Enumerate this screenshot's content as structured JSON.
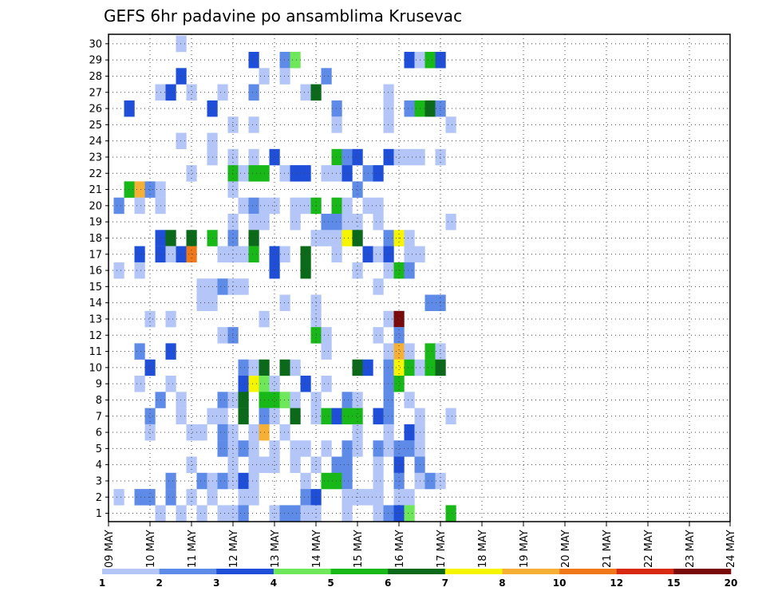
{
  "chart_data": {
    "type": "heatmap",
    "title": "GEFS 6hr padavine po ansamblima Krusevac",
    "x_ticks": [
      "09 MAY",
      "10 MAY",
      "11 MAY",
      "12 MAY",
      "13 MAY",
      "14 MAY",
      "15 MAY",
      "16 MAY",
      "17 MAY",
      "18 MAY",
      "19 MAY",
      "20 MAY",
      "21 MAY",
      "22 MAY",
      "23 MAY",
      "24 MAY"
    ],
    "y_ticks": [
      "1",
      "2",
      "3",
      "4",
      "5",
      "6",
      "7",
      "8",
      "9",
      "10",
      "11",
      "12",
      "13",
      "14",
      "15",
      "16",
      "17",
      "18",
      "19",
      "20",
      "21",
      "22",
      "23",
      "24",
      "25",
      "26",
      "27",
      "28",
      "29",
      "30"
    ],
    "grid": true,
    "legend": {
      "position": "bottom",
      "labels": [
        "1",
        "2",
        "3",
        "4",
        "5",
        "6",
        "7",
        "8",
        "10",
        "12",
        "15",
        "20"
      ],
      "colors": [
        "#b3c6f7",
        "#5f8be8",
        "#1f4fd8",
        "#6ee85a",
        "#18b818",
        "#0b6a1a",
        "#f5f500",
        "#f5b035",
        "#f07818",
        "#d82a10",
        "#7a0a0a"
      ]
    },
    "time_unit": "6-hour steps from 09 MAY 00Z",
    "cells": [
      [
        7,
        30,
        1
      ],
      [
        14,
        29,
        3
      ],
      [
        17,
        29,
        2
      ],
      [
        18,
        29,
        4
      ],
      [
        29,
        29,
        3
      ],
      [
        30,
        29,
        1
      ],
      [
        31,
        29,
        5
      ],
      [
        32,
        29,
        3
      ],
      [
        7,
        28,
        3
      ],
      [
        15,
        28,
        1
      ],
      [
        17,
        28,
        1
      ],
      [
        21,
        28,
        2
      ],
      [
        5,
        27,
        1
      ],
      [
        6,
        27,
        3
      ],
      [
        8,
        27,
        1
      ],
      [
        11,
        27,
        1
      ],
      [
        14,
        27,
        2
      ],
      [
        19,
        27,
        1
      ],
      [
        20,
        27,
        6
      ],
      [
        27,
        27,
        1
      ],
      [
        2,
        26,
        3
      ],
      [
        10,
        26,
        3
      ],
      [
        22,
        26,
        2
      ],
      [
        27,
        26,
        1
      ],
      [
        29,
        26,
        2
      ],
      [
        30,
        26,
        5
      ],
      [
        31,
        26,
        6
      ],
      [
        32,
        26,
        2
      ],
      [
        12,
        25,
        1
      ],
      [
        14,
        25,
        1
      ],
      [
        22,
        25,
        1
      ],
      [
        27,
        25,
        1
      ],
      [
        33,
        25,
        1
      ],
      [
        7,
        24,
        1
      ],
      [
        10,
        24,
        1
      ],
      [
        10,
        23,
        1
      ],
      [
        12,
        23,
        1
      ],
      [
        14,
        23,
        1
      ],
      [
        16,
        23,
        3
      ],
      [
        22,
        23,
        5
      ],
      [
        23,
        23,
        2
      ],
      [
        24,
        23,
        3
      ],
      [
        27,
        23,
        3
      ],
      [
        28,
        23,
        1
      ],
      [
        29,
        23,
        1
      ],
      [
        30,
        23,
        1
      ],
      [
        32,
        23,
        1
      ],
      [
        8,
        22,
        1
      ],
      [
        12,
        22,
        5
      ],
      [
        13,
        22,
        1
      ],
      [
        14,
        22,
        5
      ],
      [
        15,
        22,
        5
      ],
      [
        17,
        22,
        1
      ],
      [
        18,
        22,
        3
      ],
      [
        19,
        22,
        3
      ],
      [
        21,
        22,
        1
      ],
      [
        22,
        22,
        1
      ],
      [
        23,
        22,
        3
      ],
      [
        25,
        22,
        2
      ],
      [
        26,
        22,
        3
      ],
      [
        2,
        21,
        5
      ],
      [
        3,
        21,
        8
      ],
      [
        4,
        21,
        2
      ],
      [
        5,
        21,
        1
      ],
      [
        12,
        21,
        1
      ],
      [
        24,
        21,
        2
      ],
      [
        1,
        20,
        2
      ],
      [
        3,
        20,
        1
      ],
      [
        5,
        20,
        1
      ],
      [
        13,
        20,
        1
      ],
      [
        14,
        20,
        2
      ],
      [
        15,
        20,
        1
      ],
      [
        16,
        20,
        1
      ],
      [
        18,
        20,
        1
      ],
      [
        19,
        20,
        1
      ],
      [
        20,
        20,
        5
      ],
      [
        22,
        20,
        5
      ],
      [
        23,
        20,
        1
      ],
      [
        25,
        20,
        1
      ],
      [
        26,
        20,
        1
      ],
      [
        12,
        19,
        1
      ],
      [
        14,
        19,
        1
      ],
      [
        15,
        19,
        1
      ],
      [
        18,
        19,
        1
      ],
      [
        21,
        19,
        2
      ],
      [
        22,
        19,
        2
      ],
      [
        23,
        19,
        1
      ],
      [
        24,
        19,
        1
      ],
      [
        26,
        19,
        1
      ],
      [
        33,
        19,
        1
      ],
      [
        5,
        18,
        3
      ],
      [
        6,
        18,
        6
      ],
      [
        8,
        18,
        6
      ],
      [
        10,
        18,
        5
      ],
      [
        12,
        18,
        2
      ],
      [
        14,
        18,
        6
      ],
      [
        20,
        18,
        1
      ],
      [
        21,
        18,
        1
      ],
      [
        22,
        18,
        1
      ],
      [
        23,
        18,
        7
      ],
      [
        24,
        18,
        6
      ],
      [
        27,
        18,
        2
      ],
      [
        28,
        18,
        7
      ],
      [
        29,
        18,
        1
      ],
      [
        3,
        17,
        3
      ],
      [
        5,
        17,
        3
      ],
      [
        6,
        17,
        1
      ],
      [
        7,
        17,
        3
      ],
      [
        8,
        17,
        9
      ],
      [
        11,
        17,
        1
      ],
      [
        12,
        17,
        1
      ],
      [
        13,
        17,
        1
      ],
      [
        14,
        17,
        5
      ],
      [
        16,
        17,
        3
      ],
      [
        17,
        17,
        1
      ],
      [
        19,
        17,
        6
      ],
      [
        22,
        17,
        1
      ],
      [
        25,
        17,
        3
      ],
      [
        26,
        17,
        1
      ],
      [
        27,
        17,
        3
      ],
      [
        29,
        17,
        1
      ],
      [
        30,
        17,
        1
      ],
      [
        1,
        16,
        1
      ],
      [
        3,
        16,
        1
      ],
      [
        16,
        16,
        3
      ],
      [
        19,
        16,
        6
      ],
      [
        24,
        16,
        1
      ],
      [
        27,
        16,
        1
      ],
      [
        28,
        16,
        5
      ],
      [
        29,
        16,
        2
      ],
      [
        9,
        15,
        1
      ],
      [
        10,
        15,
        1
      ],
      [
        11,
        15,
        2
      ],
      [
        12,
        15,
        1
      ],
      [
        13,
        15,
        1
      ],
      [
        26,
        15,
        1
      ],
      [
        9,
        14,
        1
      ],
      [
        10,
        14,
        1
      ],
      [
        17,
        14,
        1
      ],
      [
        20,
        14,
        1
      ],
      [
        31,
        14,
        2
      ],
      [
        32,
        14,
        2
      ],
      [
        4,
        13,
        1
      ],
      [
        6,
        13,
        1
      ],
      [
        15,
        13,
        1
      ],
      [
        20,
        13,
        1
      ],
      [
        27,
        13,
        1
      ],
      [
        28,
        13,
        11
      ],
      [
        11,
        12,
        1
      ],
      [
        12,
        12,
        2
      ],
      [
        20,
        12,
        5
      ],
      [
        21,
        12,
        1
      ],
      [
        26,
        12,
        1
      ],
      [
        28,
        12,
        2
      ],
      [
        3,
        11,
        2
      ],
      [
        6,
        11,
        3
      ],
      [
        21,
        11,
        1
      ],
      [
        27,
        11,
        1
      ],
      [
        28,
        11,
        8
      ],
      [
        29,
        11,
        1
      ],
      [
        31,
        11,
        5
      ],
      [
        32,
        11,
        1
      ],
      [
        4,
        10,
        3
      ],
      [
        13,
        10,
        2
      ],
      [
        14,
        10,
        1
      ],
      [
        15,
        10,
        6
      ],
      [
        17,
        10,
        6
      ],
      [
        18,
        10,
        1
      ],
      [
        24,
        10,
        6
      ],
      [
        25,
        10,
        3
      ],
      [
        27,
        10,
        2
      ],
      [
        28,
        10,
        7
      ],
      [
        29,
        10,
        5
      ],
      [
        30,
        10,
        1
      ],
      [
        31,
        10,
        5
      ],
      [
        32,
        10,
        6
      ],
      [
        3,
        9,
        1
      ],
      [
        6,
        9,
        1
      ],
      [
        13,
        9,
        3
      ],
      [
        14,
        9,
        7
      ],
      [
        15,
        9,
        4
      ],
      [
        16,
        9,
        1
      ],
      [
        19,
        9,
        3
      ],
      [
        21,
        9,
        1
      ],
      [
        27,
        9,
        2
      ],
      [
        28,
        9,
        5
      ],
      [
        5,
        8,
        2
      ],
      [
        7,
        8,
        1
      ],
      [
        11,
        8,
        2
      ],
      [
        12,
        8,
        1
      ],
      [
        13,
        8,
        6
      ],
      [
        15,
        8,
        5
      ],
      [
        16,
        8,
        5
      ],
      [
        17,
        8,
        4
      ],
      [
        18,
        8,
        1
      ],
      [
        20,
        8,
        1
      ],
      [
        23,
        8,
        2
      ],
      [
        24,
        8,
        1
      ],
      [
        27,
        8,
        2
      ],
      [
        29,
        8,
        1
      ],
      [
        4,
        7,
        2
      ],
      [
        7,
        7,
        1
      ],
      [
        10,
        7,
        1
      ],
      [
        11,
        7,
        1
      ],
      [
        13,
        7,
        6
      ],
      [
        15,
        7,
        2
      ],
      [
        16,
        7,
        1
      ],
      [
        18,
        7,
        6
      ],
      [
        20,
        7,
        1
      ],
      [
        21,
        7,
        5
      ],
      [
        22,
        7,
        3
      ],
      [
        23,
        7,
        5
      ],
      [
        24,
        7,
        5
      ],
      [
        26,
        7,
        3
      ],
      [
        27,
        7,
        2
      ],
      [
        30,
        7,
        1
      ],
      [
        33,
        7,
        1
      ],
      [
        4,
        6,
        1
      ],
      [
        8,
        6,
        1
      ],
      [
        9,
        6,
        1
      ],
      [
        11,
        6,
        2
      ],
      [
        12,
        6,
        1
      ],
      [
        14,
        6,
        1
      ],
      [
        15,
        6,
        8
      ],
      [
        17,
        6,
        1
      ],
      [
        24,
        6,
        1
      ],
      [
        27,
        6,
        1
      ],
      [
        29,
        6,
        3
      ],
      [
        30,
        6,
        1
      ],
      [
        11,
        5,
        2
      ],
      [
        12,
        5,
        1
      ],
      [
        13,
        5,
        2
      ],
      [
        14,
        5,
        1
      ],
      [
        16,
        5,
        1
      ],
      [
        18,
        5,
        1
      ],
      [
        19,
        5,
        1
      ],
      [
        21,
        5,
        1
      ],
      [
        23,
        5,
        2
      ],
      [
        24,
        5,
        1
      ],
      [
        26,
        5,
        2
      ],
      [
        27,
        5,
        1
      ],
      [
        28,
        5,
        2
      ],
      [
        29,
        5,
        2
      ],
      [
        30,
        5,
        1
      ],
      [
        8,
        4,
        1
      ],
      [
        12,
        4,
        1
      ],
      [
        14,
        4,
        1
      ],
      [
        15,
        4,
        1
      ],
      [
        16,
        4,
        1
      ],
      [
        18,
        4,
        1
      ],
      [
        20,
        4,
        1
      ],
      [
        22,
        4,
        2
      ],
      [
        23,
        4,
        2
      ],
      [
        26,
        4,
        1
      ],
      [
        28,
        4,
        3
      ],
      [
        30,
        4,
        2
      ],
      [
        6,
        3,
        2
      ],
      [
        9,
        3,
        2
      ],
      [
        10,
        3,
        1
      ],
      [
        11,
        3,
        2
      ],
      [
        12,
        3,
        1
      ],
      [
        13,
        3,
        3
      ],
      [
        14,
        3,
        1
      ],
      [
        19,
        3,
        1
      ],
      [
        21,
        3,
        5
      ],
      [
        22,
        3,
        5
      ],
      [
        23,
        3,
        2
      ],
      [
        26,
        3,
        1
      ],
      [
        28,
        3,
        2
      ],
      [
        30,
        3,
        1
      ],
      [
        31,
        3,
        2
      ],
      [
        32,
        3,
        1
      ],
      [
        1,
        2,
        1
      ],
      [
        3,
        2,
        2
      ],
      [
        4,
        2,
        2
      ],
      [
        6,
        2,
        2
      ],
      [
        8,
        2,
        1
      ],
      [
        10,
        2,
        1
      ],
      [
        13,
        2,
        1
      ],
      [
        14,
        2,
        1
      ],
      [
        19,
        2,
        2
      ],
      [
        20,
        2,
        3
      ],
      [
        23,
        2,
        1
      ],
      [
        24,
        2,
        1
      ],
      [
        25,
        2,
        1
      ],
      [
        26,
        2,
        1
      ],
      [
        28,
        2,
        1
      ],
      [
        29,
        2,
        1
      ],
      [
        5,
        1,
        1
      ],
      [
        7,
        1,
        1
      ],
      [
        9,
        1,
        1
      ],
      [
        11,
        1,
        1
      ],
      [
        12,
        1,
        1
      ],
      [
        13,
        1,
        2
      ],
      [
        16,
        1,
        1
      ],
      [
        17,
        1,
        2
      ],
      [
        18,
        1,
        2
      ],
      [
        19,
        1,
        1
      ],
      [
        20,
        1,
        1
      ],
      [
        23,
        1,
        1
      ],
      [
        26,
        1,
        1
      ],
      [
        27,
        1,
        2
      ],
      [
        28,
        1,
        3
      ],
      [
        29,
        1,
        4
      ],
      [
        33,
        1,
        5
      ]
    ],
    "value_index_scale": [
      "1",
      "2",
      "3",
      "4",
      "5",
      "6",
      "7",
      "8",
      "10",
      "12",
      "15",
      "20"
    ]
  }
}
